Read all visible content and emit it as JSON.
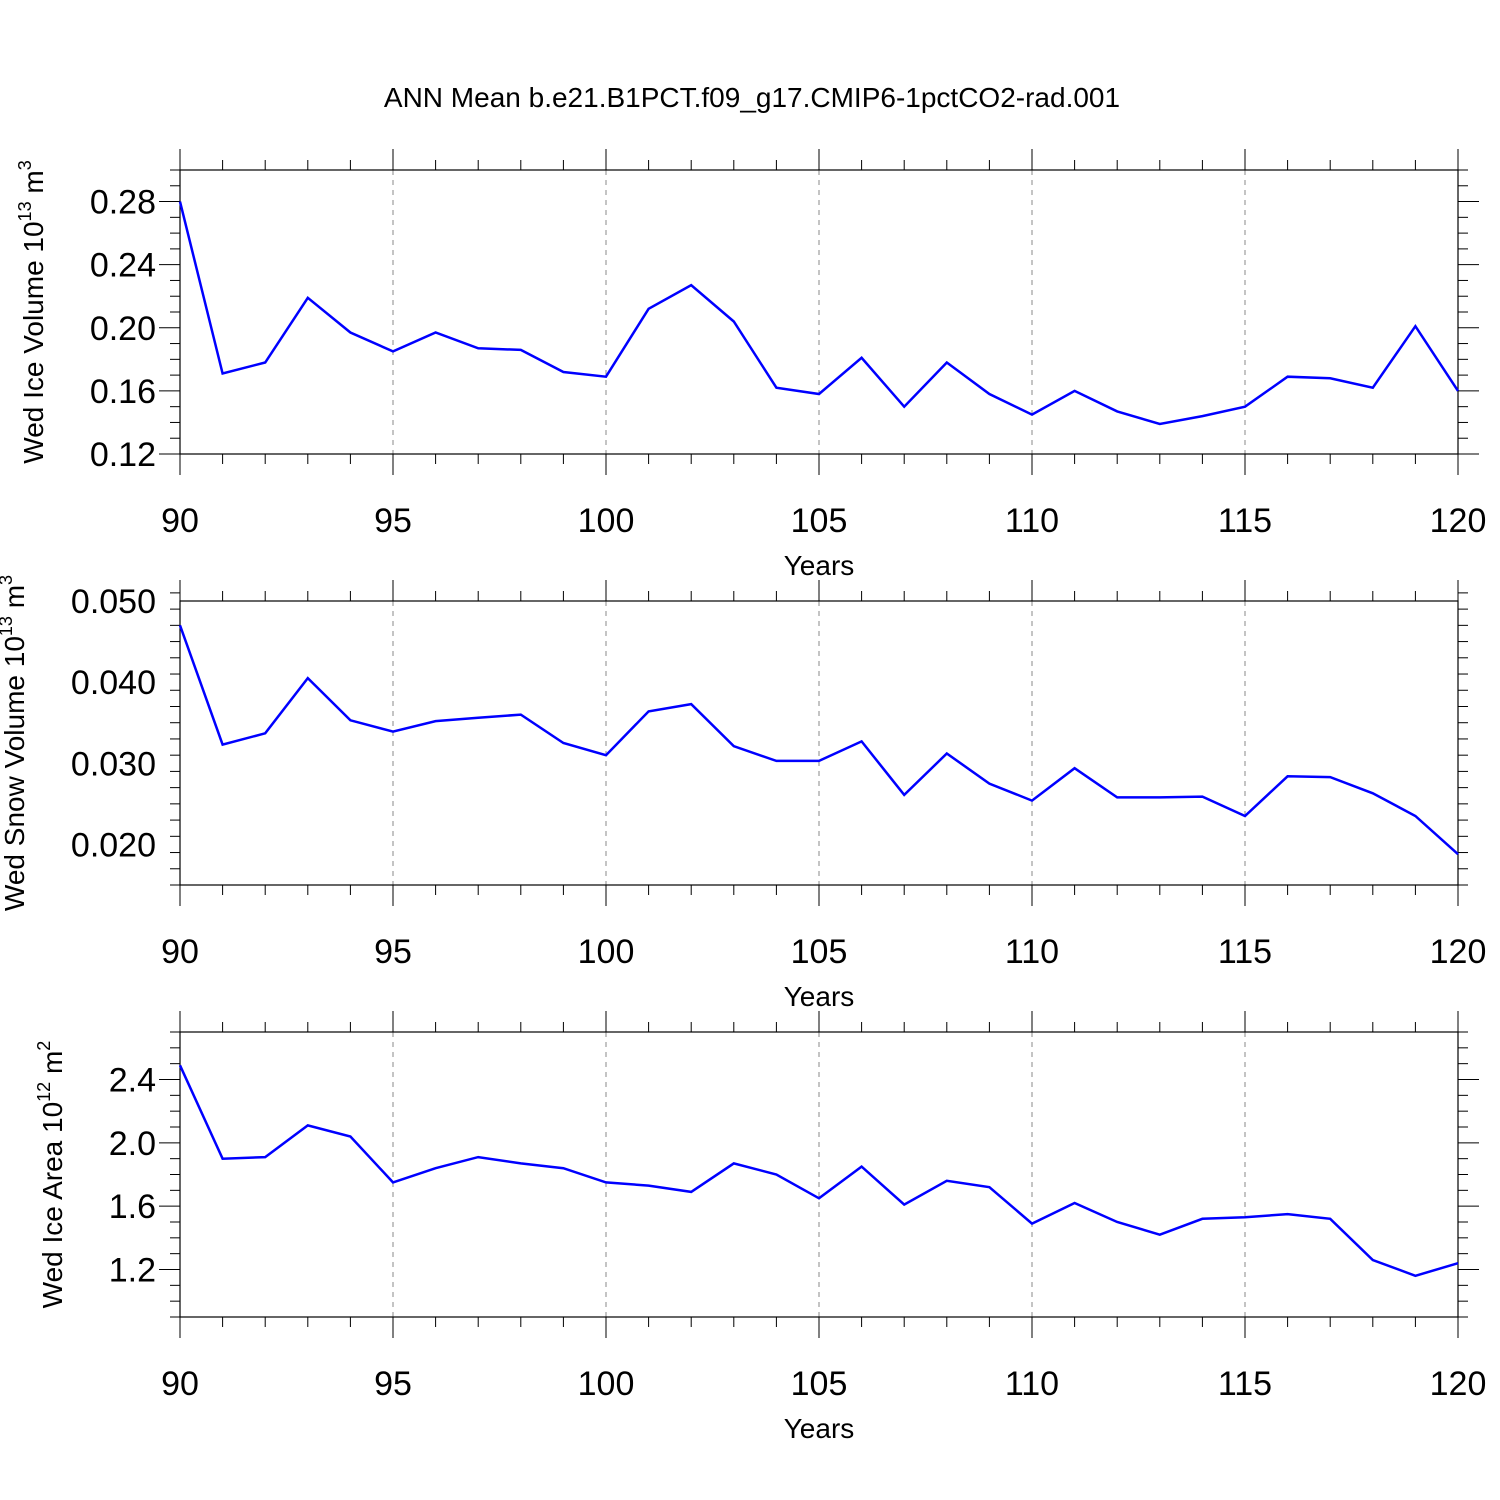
{
  "title": "ANN Mean b.e21.B1PCT.f09_g17.CMIP6-1pctCO2-rad.001",
  "line_color": "#0000ff",
  "chart_data": [
    {
      "type": "line",
      "ylabel_main": "Wed Ice Volume 10",
      "ylabel_sup": "13",
      "ylabel_unit": " m",
      "ylabel_unit_sup": "3",
      "xlabel": "Years",
      "xlim": [
        90,
        120
      ],
      "ylim": [
        0.12,
        0.3
      ],
      "x_ticks": [
        90,
        95,
        100,
        105,
        110,
        115,
        120
      ],
      "x_tick_labels": [
        "90",
        "95",
        "100",
        "105",
        "110",
        "115",
        "120"
      ],
      "y_ticks": [
        0.12,
        0.16,
        0.2,
        0.24,
        0.28
      ],
      "y_tick_labels": [
        "0.12",
        "0.16",
        "0.20",
        "0.24",
        "0.28"
      ],
      "y_minor_step": 0.01,
      "grid": "vertical dashed at major x ticks",
      "series": [
        {
          "x": [
            90,
            91,
            92,
            93,
            94,
            95,
            96,
            97,
            98,
            99,
            100,
            101,
            102,
            103,
            104,
            105,
            106,
            107,
            108,
            109,
            110,
            111,
            112,
            113,
            114,
            115,
            116,
            117,
            118,
            119,
            120
          ],
          "values": [
            0.28,
            0.171,
            0.178,
            0.219,
            0.197,
            0.185,
            0.197,
            0.187,
            0.186,
            0.172,
            0.169,
            0.212,
            0.227,
            0.204,
            0.162,
            0.158,
            0.181,
            0.15,
            0.178,
            0.158,
            0.145,
            0.16,
            0.147,
            0.139,
            0.144,
            0.15,
            0.169,
            0.168,
            0.162,
            0.201,
            0.16
          ]
        }
      ]
    },
    {
      "type": "line",
      "ylabel_main": "Wed Snow Volume 10",
      "ylabel_sup": "13",
      "ylabel_unit": " m",
      "ylabel_unit_sup": "3",
      "xlabel": "Years",
      "xlim": [
        90,
        120
      ],
      "ylim": [
        0.015,
        0.05
      ],
      "x_ticks": [
        90,
        95,
        100,
        105,
        110,
        115,
        120
      ],
      "x_tick_labels": [
        "90",
        "95",
        "100",
        "105",
        "110",
        "115",
        "120"
      ],
      "y_ticks": [
        0.02,
        0.03,
        0.04,
        0.05
      ],
      "y_tick_labels": [
        "0.020",
        "0.030",
        "0.040",
        "0.050"
      ],
      "y_minor_step": 0.002,
      "grid": "vertical dashed at major x ticks",
      "series": [
        {
          "x": [
            90,
            91,
            92,
            93,
            94,
            95,
            96,
            97,
            98,
            99,
            100,
            101,
            102,
            103,
            104,
            105,
            106,
            107,
            108,
            109,
            110,
            111,
            112,
            113,
            114,
            115,
            116,
            117,
            118,
            119,
            120
          ],
          "values": [
            0.047,
            0.0323,
            0.0337,
            0.0405,
            0.0353,
            0.0339,
            0.0352,
            0.0356,
            0.036,
            0.0325,
            0.031,
            0.0364,
            0.0373,
            0.0321,
            0.0303,
            0.0303,
            0.0327,
            0.0261,
            0.0312,
            0.0275,
            0.0254,
            0.0294,
            0.0258,
            0.0258,
            0.0259,
            0.0235,
            0.0284,
            0.0283,
            0.0263,
            0.0235,
            0.0188
          ]
        }
      ]
    },
    {
      "type": "line",
      "ylabel_main": "Wed Ice Area 10",
      "ylabel_sup": "12",
      "ylabel_unit": " m",
      "ylabel_unit_sup": "2",
      "xlabel": "Years",
      "xlim": [
        90,
        120
      ],
      "ylim": [
        0.9,
        2.7
      ],
      "x_ticks": [
        90,
        95,
        100,
        105,
        110,
        115,
        120
      ],
      "x_tick_labels": [
        "90",
        "95",
        "100",
        "105",
        "110",
        "115",
        "120"
      ],
      "y_ticks": [
        1.2,
        1.6,
        2.0,
        2.4
      ],
      "y_tick_labels": [
        "1.2",
        "1.6",
        "2.0",
        "2.4"
      ],
      "y_minor_step": 0.1,
      "grid": "vertical dashed at major x ticks",
      "series": [
        {
          "x": [
            90,
            91,
            92,
            93,
            94,
            95,
            96,
            97,
            98,
            99,
            100,
            101,
            102,
            103,
            104,
            105,
            106,
            107,
            108,
            109,
            110,
            111,
            112,
            113,
            114,
            115,
            116,
            117,
            118,
            119,
            120
          ],
          "values": [
            2.49,
            1.9,
            1.91,
            2.11,
            2.04,
            1.75,
            1.84,
            1.91,
            1.87,
            1.84,
            1.75,
            1.73,
            1.69,
            1.87,
            1.8,
            1.65,
            1.85,
            1.61,
            1.76,
            1.72,
            1.49,
            1.62,
            1.5,
            1.42,
            1.52,
            1.53,
            1.55,
            1.52,
            1.26,
            1.16,
            1.24
          ]
        }
      ]
    }
  ]
}
